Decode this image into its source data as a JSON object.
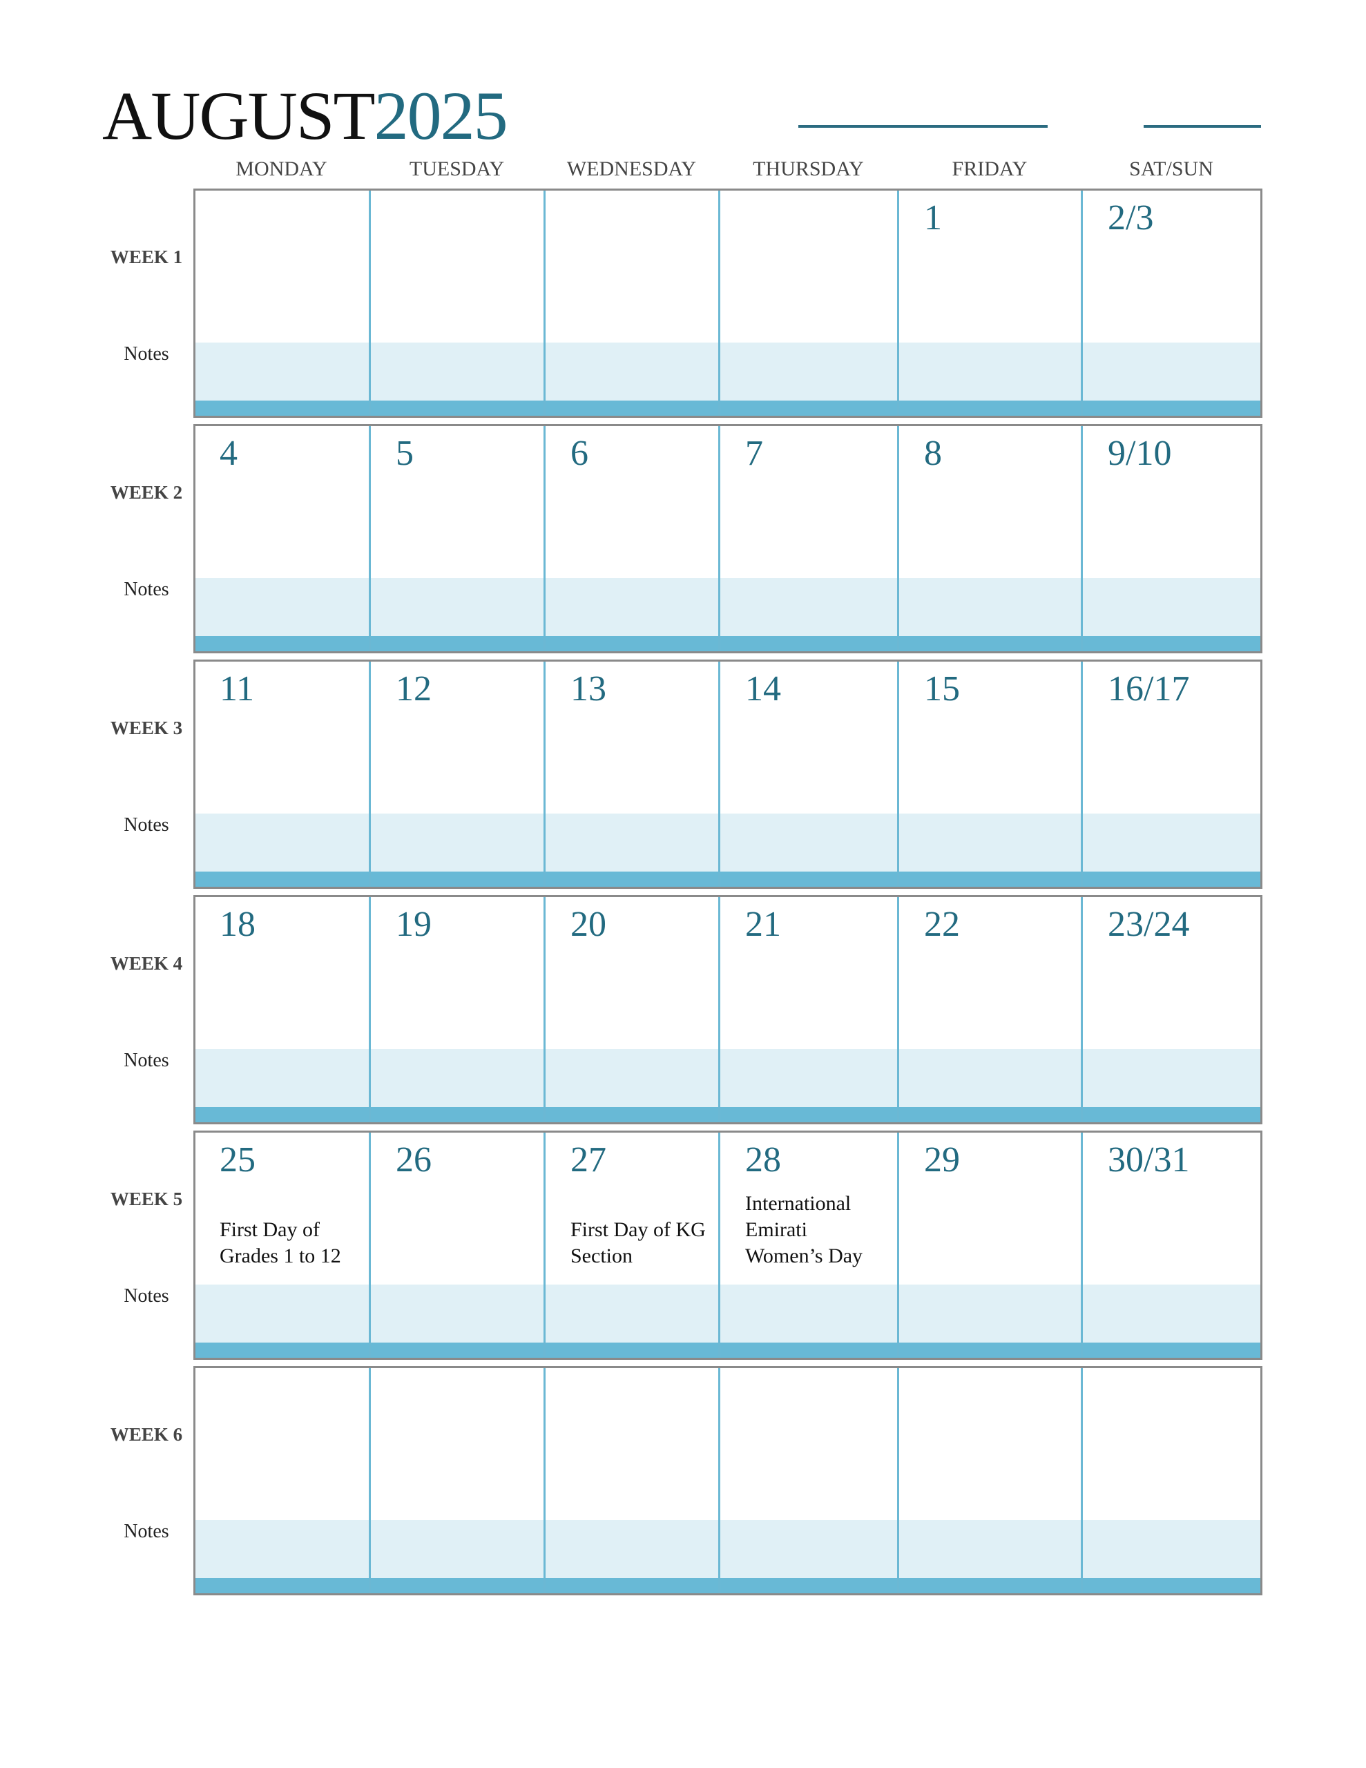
{
  "header": {
    "month": "AUGUST",
    "year": "2025"
  },
  "days": [
    "MONDAY",
    "TUESDAY",
    "WEDNESDAY",
    "THURSDAY",
    "FRIDAY",
    "SAT/SUN"
  ],
  "notes_label": "Notes",
  "colors": {
    "accent": "#226a80",
    "notes_bg": "#e0f0f6",
    "band": "#68b9d6",
    "divider": "#6bb8d4",
    "border": "#8a8a8a"
  },
  "weeks": [
    {
      "label": "WEEK 1",
      "dates": [
        "",
        "",
        "",
        "",
        "1",
        "2/3"
      ],
      "events": [
        [],
        [],
        [],
        [],
        [],
        []
      ]
    },
    {
      "label": "WEEK 2",
      "dates": [
        "4",
        "5",
        "6",
        "7",
        "8",
        "9/10"
      ],
      "events": [
        [],
        [],
        [],
        [],
        [],
        []
      ]
    },
    {
      "label": "WEEK 3",
      "dates": [
        "11",
        "12",
        "13",
        "14",
        "15",
        "16/17"
      ],
      "events": [
        [],
        [],
        [],
        [],
        [],
        []
      ]
    },
    {
      "label": "WEEK 4",
      "dates": [
        "18",
        "19",
        "20",
        "21",
        "22",
        "23/24"
      ],
      "events": [
        [],
        [],
        [],
        [],
        [],
        []
      ]
    },
    {
      "label": "WEEK 5",
      "dates": [
        "25",
        "26",
        "27",
        "28",
        "29",
        "30/31"
      ],
      "events": [
        [
          "First Day of",
          "Grades 1 to 12"
        ],
        [],
        [
          "First Day of KG",
          "Section"
        ],
        [
          "International",
          "Emirati",
          "Women’s Day"
        ],
        [],
        []
      ]
    },
    {
      "label": "WEEK 6",
      "dates": [
        "",
        "",
        "",
        "",
        "",
        ""
      ],
      "events": [
        [],
        [],
        [],
        [],
        [],
        []
      ]
    }
  ]
}
